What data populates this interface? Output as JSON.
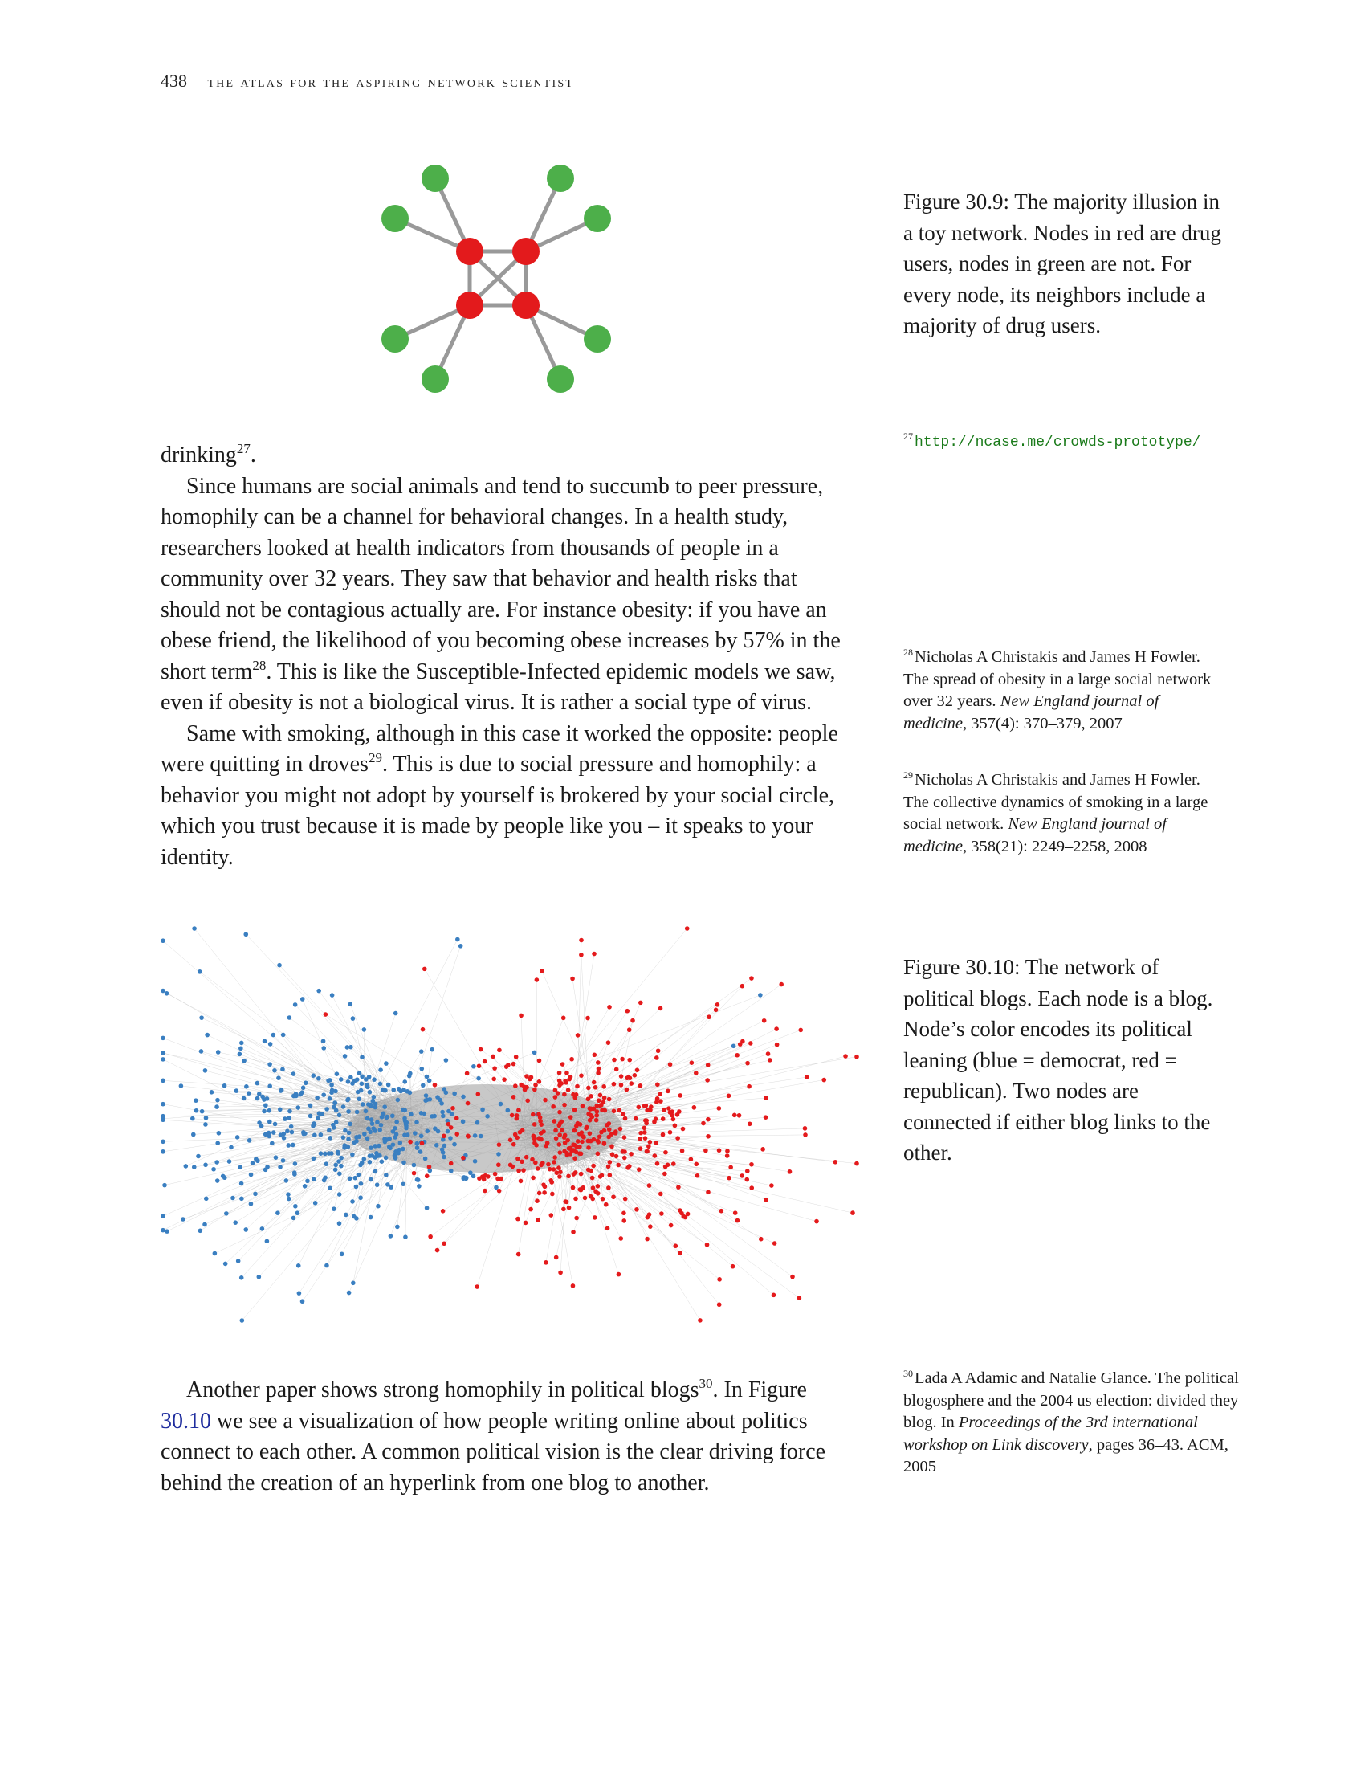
{
  "header": {
    "page_number": "438",
    "book_title": "the atlas for the aspiring network scientist"
  },
  "figure_30_9": {
    "caption": "Figure 30.9: The majority illusion in a toy network. Nodes in red are drug users, nodes in green are not. For every node, its neighbors include a majority of drug users.",
    "colors": {
      "user": "#e31a1c",
      "non_user": "#4daf4a",
      "edge": "#999999"
    },
    "nodes": [
      {
        "id": "r1",
        "group": "user"
      },
      {
        "id": "r2",
        "group": "user"
      },
      {
        "id": "r3",
        "group": "user"
      },
      {
        "id": "r4",
        "group": "user"
      },
      {
        "id": "g1",
        "group": "non_user"
      },
      {
        "id": "g2",
        "group": "non_user"
      },
      {
        "id": "g3",
        "group": "non_user"
      },
      {
        "id": "g4",
        "group": "non_user"
      },
      {
        "id": "g5",
        "group": "non_user"
      },
      {
        "id": "g6",
        "group": "non_user"
      },
      {
        "id": "g7",
        "group": "non_user"
      },
      {
        "id": "g8",
        "group": "non_user"
      }
    ],
    "edges": [
      [
        "r1",
        "r2"
      ],
      [
        "r1",
        "r3"
      ],
      [
        "r1",
        "r4"
      ],
      [
        "r2",
        "r3"
      ],
      [
        "r2",
        "r4"
      ],
      [
        "r3",
        "r4"
      ],
      [
        "r1",
        "g1"
      ],
      [
        "r1",
        "g2"
      ],
      [
        "r2",
        "g3"
      ],
      [
        "r2",
        "g4"
      ],
      [
        "r3",
        "g5"
      ],
      [
        "r3",
        "g6"
      ],
      [
        "r4",
        "g7"
      ],
      [
        "r4",
        "g8"
      ]
    ]
  },
  "footnote_27": {
    "marker": "27",
    "url": "http://ncase.me/crowds-prototype/"
  },
  "body": {
    "p0": "drinking",
    "p0_sup": "27",
    "p0_end": ".",
    "p1_a": "Since humans are social animals and tend to succumb to peer pressure, homophily can be a channel for behavioral changes. In a health study, researchers looked at health indicators from thousands of people in a community over 32 years. They saw that behavior and health risks that should not be contagious actually are. For instance obesity: if you have an obese friend, the likelihood of you becoming obese increases by 57% in the short term",
    "p1_sup": "28",
    "p1_b": ". This is like the Susceptible-Infected epidemic models we saw, even if obesity is not a biological virus. It is rather a social type of virus.",
    "p2_a": "Same with smoking, although in this case it worked the opposite: people were quitting in droves",
    "p2_sup": "29",
    "p2_b": ". This is due to social pressure and homophily: a behavior you might not adopt by yourself is brokered by your social circle, which you trust because it is made by people like you – it speaks to your identity.",
    "p3_a": "Another paper shows strong homophily in political blogs",
    "p3_sup": "30",
    "p3_b": ". In Figure ",
    "p3_ref": "30.10",
    "p3_c": " we see a visualization of how people writing online about politics connect to each other. A common political vision is the clear driving force behind the creation of an hyperlink from one blog to another."
  },
  "footnote_28": {
    "marker": "28",
    "authors": "Nicholas A Christakis and James H Fowler.",
    "title": "The spread of obesity in a large social network over 32 years.",
    "venue": "New England journal of medicine",
    "rest": ", 357(4): 370–379, 2007"
  },
  "footnote_29": {
    "marker": "29",
    "authors": "Nicholas A Christakis and James H Fowler.",
    "title": "The collective dynamics of smoking in a large social network.",
    "venue": "New England journal of medicine",
    "rest": ", 358(21): 2249–2258, 2008"
  },
  "figure_30_10": {
    "caption": "Figure 30.10: The network of political blogs. Each node is a blog. Node’s color encodes its political leaning (blue = democrat, red = republican). Two nodes are connected if either blog links to the other.",
    "colors": {
      "democrat": "#3a7fc1",
      "republican": "#e41a1c",
      "edge": "#9a9a9a"
    }
  },
  "footnote_30": {
    "marker": "30",
    "authors": "Lada A Adamic and Natalie Glance.",
    "title": "The political blogosphere and the 2004 us election: divided they blog.",
    "pre": "In ",
    "venue": "Proceedings of the 3rd international workshop on Link discovery",
    "rest": ", pages 36–43. ACM, 2005"
  }
}
